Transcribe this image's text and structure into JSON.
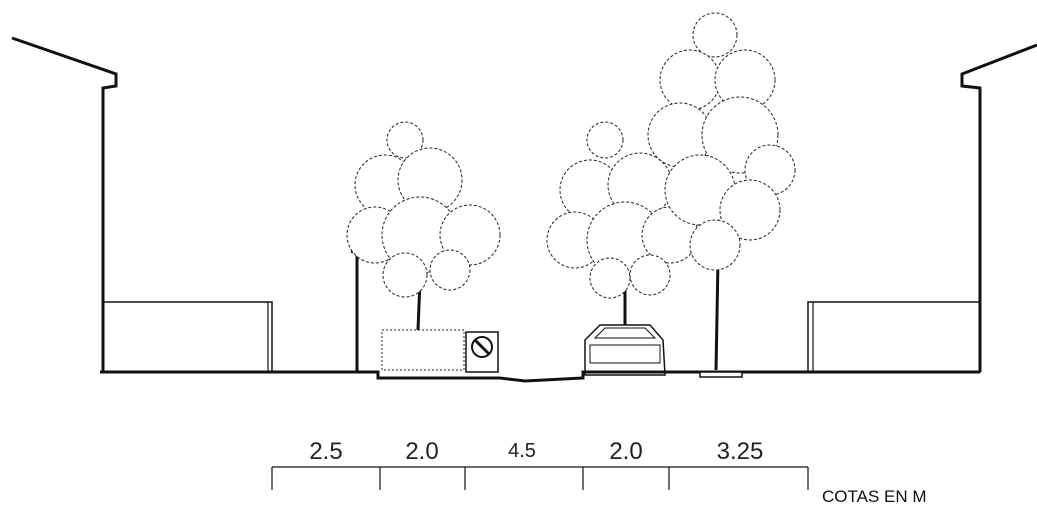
{
  "dimensions": [
    {
      "label": "2.5"
    },
    {
      "label": "2.0"
    },
    {
      "label": "4.5"
    },
    {
      "label": "2.0"
    },
    {
      "label": "3.25"
    }
  ],
  "units_note": "COTAS EN M"
}
